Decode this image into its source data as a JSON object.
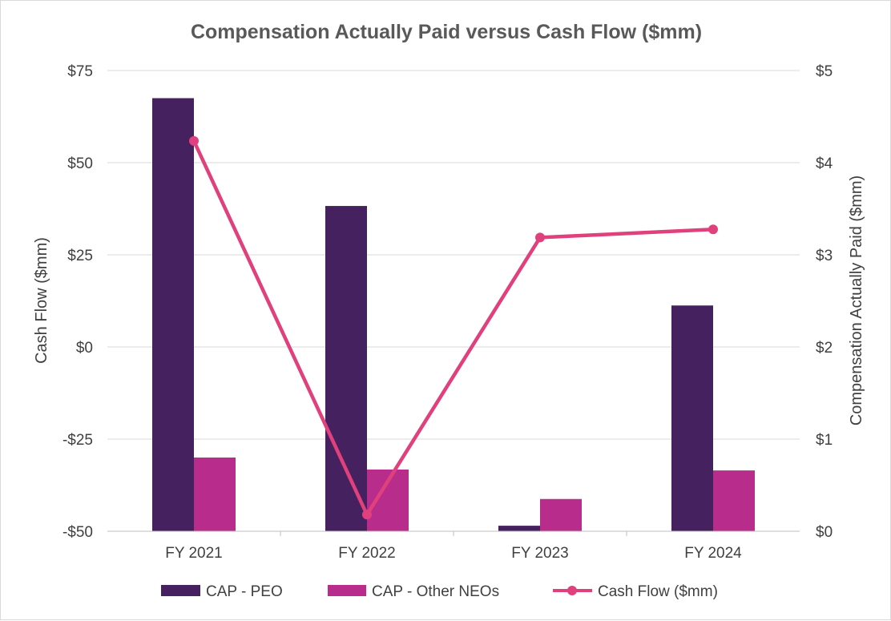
{
  "chart_data": {
    "type": "bar",
    "title": "Compensation Actually Paid versus Cash Flow ($mm)",
    "categories": [
      "FY 2021",
      "FY 2022",
      "FY 2023",
      "FY 2024"
    ],
    "left_axis": {
      "label": "Cash Flow ($mm)",
      "range": [
        -50,
        75
      ],
      "ticks": [
        75,
        50,
        25,
        0,
        -25,
        -50
      ],
      "tick_labels": [
        "$75",
        "$50",
        "$25",
        "$0",
        "-$25",
        "-$50"
      ]
    },
    "right_axis": {
      "label": "Compensation Actually Paid ($mm)",
      "range": [
        0,
        5
      ],
      "ticks": [
        5,
        4,
        3,
        2,
        1,
        0
      ],
      "tick_labels": [
        "$5",
        "$4",
        "$3",
        "$2",
        "$1",
        "$0"
      ]
    },
    "series": [
      {
        "name": "CAP - PEO",
        "type": "bar",
        "axis": "right",
        "color": "#46215f",
        "values": [
          4.7,
          3.53,
          0.06,
          2.45
        ]
      },
      {
        "name": "CAP - Other NEOs",
        "type": "bar",
        "axis": "right",
        "color": "#b82c8c",
        "values": [
          0.8,
          0.67,
          0.35,
          0.66
        ]
      },
      {
        "name": "Cash Flow ($mm)",
        "type": "line",
        "axis": "left",
        "color": "#e0407c",
        "values": [
          55.9,
          -45.5,
          29.7,
          31.9
        ]
      }
    ],
    "grid": true,
    "legend_position": "bottom"
  }
}
